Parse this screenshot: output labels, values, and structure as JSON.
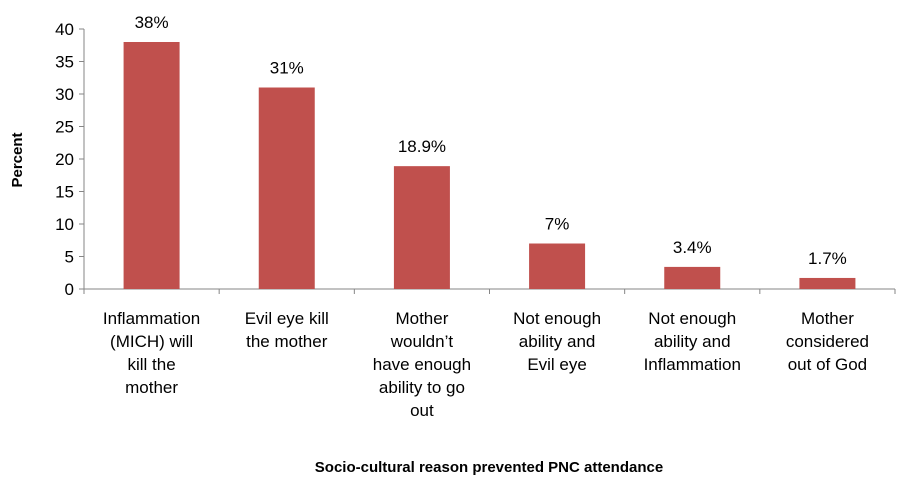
{
  "chart_data": {
    "type": "bar",
    "categories": [
      [
        "Inflammation",
        "(MICH) will",
        "kill the",
        "mother"
      ],
      [
        "Evil eye kill",
        "the mother"
      ],
      [
        "Mother",
        "wouldn’t",
        "have enough",
        "ability to go",
        "out"
      ],
      [
        "Not enough",
        "ability and",
        "Evil eye"
      ],
      [
        "Not enough",
        "ability and",
        "Inflammation"
      ],
      [
        "Mother",
        "considered",
        "out of God"
      ]
    ],
    "values": [
      38,
      31,
      18.9,
      7,
      3.4,
      1.7
    ],
    "data_labels": [
      "38%",
      "31%",
      "18.9%",
      "7%",
      "3.4%",
      "1.7%"
    ],
    "xlabel": "Socio-cultural reason prevented PNC attendance",
    "ylabel": "Percent",
    "ylim": [
      0,
      40
    ],
    "yticks": [
      "0",
      "5",
      "10",
      "15",
      "20",
      "25",
      "30",
      "35",
      "40"
    ],
    "grid": false,
    "bar_color": "#c0504d"
  }
}
